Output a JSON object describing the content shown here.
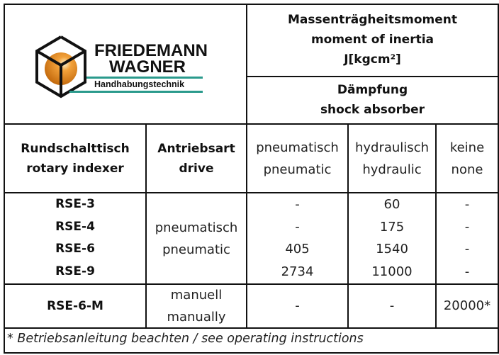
{
  "logo": {
    "line1": "FRIEDEMANN",
    "line2": "WAGNER",
    "tagline": "Handhabungstechnik",
    "accent": "#2a9a8c",
    "sphere": "#e8860f"
  },
  "header": {
    "inertia": [
      "Massenträgheitsmoment",
      "moment of inertia",
      "J[kgcm²]"
    ],
    "damping": [
      "Dämpfung",
      "shock absorber"
    ]
  },
  "columns": {
    "indexer": [
      "Rundschalttisch",
      "rotary indexer"
    ],
    "drive": [
      "Antriebsart",
      "drive"
    ],
    "pneumatic": [
      "pneumatisch",
      "pneumatic"
    ],
    "hydraulic": [
      "hydraulisch",
      "hydraulic"
    ],
    "none": [
      "keine",
      "none"
    ]
  },
  "group1": {
    "models": [
      "RSE-3",
      "RSE-4",
      "RSE-6",
      "RSE-9"
    ],
    "drive": [
      "pneumatisch",
      "pneumatic"
    ],
    "pneumatic": [
      "-",
      "-",
      "405",
      "2734"
    ],
    "hydraulic": [
      "60",
      "175",
      "1540",
      "11000"
    ],
    "none": [
      "-",
      "-",
      "-",
      "-"
    ]
  },
  "group2": {
    "model": "RSE-6-M",
    "drive": [
      "manuell",
      "manually"
    ],
    "pneumatic": "-",
    "hydraulic": "-",
    "none": "20000*"
  },
  "footnote": "* Betriebsanleitung beachten / see operating instructions"
}
